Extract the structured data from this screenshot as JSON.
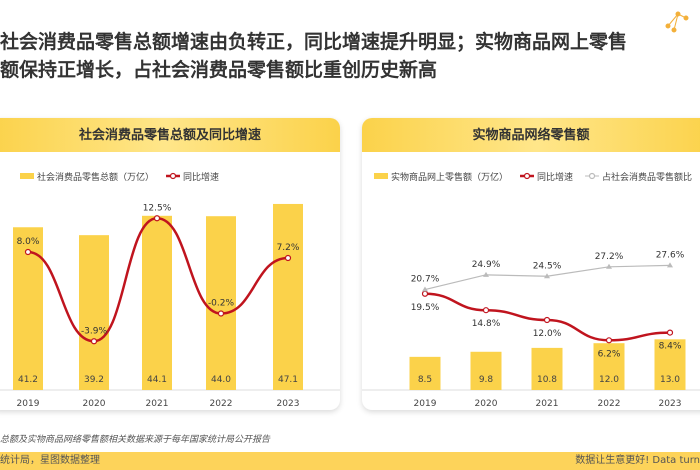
{
  "title": [
    "社会消费品零售总额增速由负转正，同比增速提升明显；实物商品网上零售",
    "额保持正增长，占社会消费品零售额比重创历史新高"
  ],
  "colors": {
    "bar": "#fbd24a",
    "line": "#c0141e",
    "gray": "#bbbbbb"
  },
  "chart_data": [
    {
      "type": "bar+line",
      "title": "社会消费品零售总额及同比增速",
      "categories": [
        "2019",
        "2020",
        "2021",
        "2022",
        "2023"
      ],
      "series": [
        {
          "name": "社会消费品零售总额（万亿）",
          "type": "bar",
          "values": [
            41.2,
            39.2,
            44.1,
            44.0,
            47.1
          ],
          "labels": [
            "41.2",
            "39.2",
            "44.1",
            "44.0",
            "47.1"
          ]
        },
        {
          "name": "同比增速",
          "type": "line",
          "values": [
            8.0,
            -3.9,
            12.5,
            -0.2,
            7.2
          ],
          "labels": [
            "8.0%",
            "-3.9%",
            "12.5%",
            "-0.2%",
            "7.2%"
          ]
        }
      ],
      "legend": "top"
    },
    {
      "type": "bar+line",
      "title": "实物商品网络零售额",
      "categories": [
        "2019",
        "2020",
        "2021",
        "2022",
        "2023"
      ],
      "series": [
        {
          "name": "实物商品网上零售额（万亿）",
          "type": "bar",
          "values": [
            8.5,
            9.8,
            10.8,
            12.0,
            13.0
          ],
          "labels": [
            "8.5",
            "9.8",
            "10.8",
            "12.0",
            "13.0"
          ]
        },
        {
          "name": "同比增速",
          "type": "line",
          "values": [
            19.5,
            14.8,
            12.0,
            6.2,
            8.4
          ],
          "labels": [
            "19.5%",
            "14.8%",
            "12.0%",
            "6.2%",
            "8.4%"
          ]
        },
        {
          "name": "占社会消费品零售额比",
          "type": "line",
          "values": [
            20.7,
            24.9,
            24.5,
            27.2,
            27.6
          ],
          "labels": [
            "20.7%",
            "24.9%",
            "24.5%",
            "27.2%",
            "27.6%"
          ]
        }
      ],
      "legend": "top"
    }
  ],
  "note": "总额及实物商品网络零售额相关数据来源于每年国家统计局公开报告",
  "footer": {
    "left": "统计局，星图数据整理",
    "right": "数据让生意更好! Data turn"
  }
}
